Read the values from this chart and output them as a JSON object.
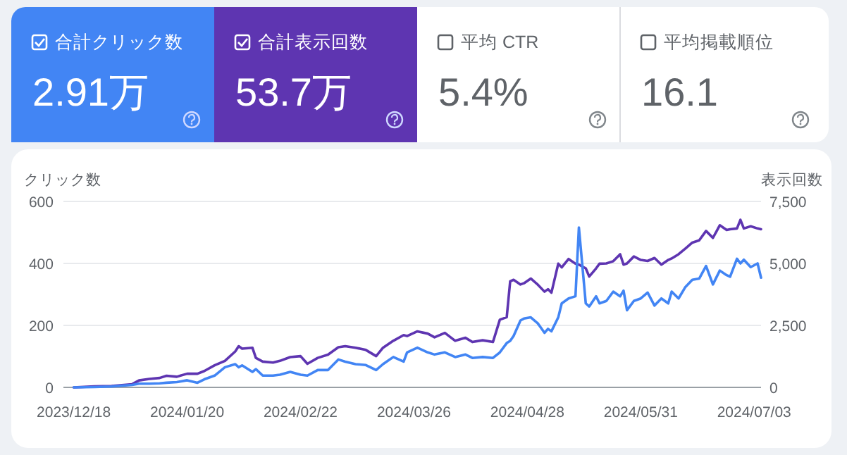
{
  "chart_data": [
    {
      "type": "other",
      "annotations": [
        "合計クリック数",
        "2.91万",
        "合計表示回数",
        "53.7万",
        "平均 CTR",
        "5.4%",
        "平均掲載順位",
        "16.1"
      ],
      "colors": [
        "#4285f4",
        "#5e35b1",
        "#ffffff",
        "#ffffff"
      ]
    },
    {
      "type": "line",
      "ylabel": "クリック数",
      "y2label": "表示回数",
      "grid": "y",
      "x": [
        "2023-12-18",
        "2023-12-24",
        "2023-12-29",
        "2024-01-04",
        "2024-01-06",
        "2024-01-09",
        "2024-01-12",
        "2024-01-14",
        "2024-01-17",
        "2024-01-20",
        "2024-01-23",
        "2024-01-25",
        "2024-01-28",
        "2024-01-31",
        "2024-02-03",
        "2024-02-04",
        "2024-02-05",
        "2024-02-08",
        "2024-02-09",
        "2024-02-11",
        "2024-02-14",
        "2024-02-16",
        "2024-02-19",
        "2024-02-22",
        "2024-02-24",
        "2024-02-27",
        "2024-03-01",
        "2024-03-04",
        "2024-03-06",
        "2024-03-09",
        "2024-03-12",
        "2024-03-15",
        "2024-03-17",
        "2024-03-20",
        "2024-03-23",
        "2024-03-24",
        "2024-03-27",
        "2024-03-30",
        "2024-04-01",
        "2024-04-04",
        "2024-04-07",
        "2024-04-10",
        "2024-04-12",
        "2024-04-15",
        "2024-04-18",
        "2024-04-20",
        "2024-04-22",
        "2024-04-23",
        "2024-04-24",
        "2024-04-26",
        "2024-04-27",
        "2024-04-29",
        "2024-05-01",
        "2024-05-03",
        "2024-05-04",
        "2024-05-05",
        "2024-05-07",
        "2024-05-08",
        "2024-05-10",
        "2024-05-12",
        "2024-05-13",
        "2024-05-15",
        "2024-05-16",
        "2024-05-18",
        "2024-05-19",
        "2024-05-21",
        "2024-05-23",
        "2024-05-25",
        "2024-05-26",
        "2024-05-27",
        "2024-05-29",
        "2024-05-31",
        "2024-06-02",
        "2024-06-04",
        "2024-06-06",
        "2024-06-08",
        "2024-06-09",
        "2024-06-11",
        "2024-06-13",
        "2024-06-15",
        "2024-06-17",
        "2024-06-19",
        "2024-06-21",
        "2024-06-23",
        "2024-06-25",
        "2024-06-26",
        "2024-06-28",
        "2024-06-29",
        "2024-06-30",
        "2024-07-02",
        "2024-07-04",
        "2024-07-05"
      ],
      "xlim": [
        "2023-12-15",
        "2024-07-05"
      ],
      "xticks": [
        {
          "value": "2023-12-18",
          "label": "2023/12/18"
        },
        {
          "value": "2024-01-20",
          "label": "2024/01/20"
        },
        {
          "value": "2024-02-22",
          "label": "2024/02/22"
        },
        {
          "value": "2024-03-26",
          "label": "2024/03/26"
        },
        {
          "value": "2024-04-28",
          "label": "2024/04/28"
        },
        {
          "value": "2024-05-31",
          "label": "2024/05/31"
        },
        {
          "value": "2024-07-03",
          "label": "2024/07/03"
        }
      ],
      "ylim": [
        0,
        600
      ],
      "yticks": [
        0,
        200,
        400,
        600
      ],
      "y2lim": [
        0,
        7500
      ],
      "y2ticks": [
        0,
        {
          "value": 2500,
          "label": "2,500"
        },
        {
          "value": 5000,
          "label": "5,000"
        },
        {
          "value": 7500,
          "label": "7,500"
        }
      ],
      "series": [
        {
          "color": "#5e35b1",
          "axis": "y2",
          "values": [
            0,
            40,
            55,
            130,
            280,
            340,
            380,
            470,
            430,
            550,
            550,
            660,
            890,
            1070,
            1450,
            1660,
            1560,
            1600,
            1190,
            1040,
            1000,
            1070,
            1220,
            1260,
            950,
            1190,
            1320,
            1620,
            1660,
            1600,
            1510,
            1260,
            1600,
            1880,
            2110,
            2070,
            2260,
            2170,
            2020,
            2200,
            1880,
            2000,
            1830,
            1900,
            1830,
            2730,
            2830,
            4280,
            4340,
            4150,
            4200,
            4390,
            4150,
            3860,
            3960,
            3820,
            4990,
            4840,
            5180,
            4990,
            4950,
            4800,
            4470,
            4800,
            4990,
            5000,
            5090,
            5370,
            4950,
            5000,
            5280,
            5140,
            5100,
            5220,
            4950,
            5140,
            5200,
            5370,
            5600,
            5840,
            5930,
            6310,
            6030,
            6540,
            6350,
            6380,
            6410,
            6760,
            6410,
            6500,
            6410,
            6380
          ]
        },
        {
          "color": "#4285f4",
          "values": [
            0,
            1,
            3,
            8,
            12,
            12,
            13,
            15,
            17,
            23,
            15,
            26,
            38,
            65,
            75,
            65,
            71,
            50,
            59,
            38,
            38,
            41,
            50,
            41,
            38,
            56,
            56,
            90,
            83,
            75,
            72,
            56,
            75,
            98,
            83,
            113,
            128,
            113,
            106,
            113,
            98,
            106,
            95,
            98,
            95,
            113,
            143,
            150,
            166,
            216,
            222,
            226,
            207,
            176,
            189,
            181,
            226,
            271,
            287,
            294,
            516,
            271,
            261,
            294,
            271,
            279,
            309,
            294,
            312,
            249,
            279,
            287,
            306,
            264,
            287,
            271,
            309,
            287,
            324,
            347,
            351,
            392,
            332,
            377,
            362,
            357,
            415,
            400,
            412,
            388,
            400,
            354
          ]
        }
      ]
    }
  ]
}
